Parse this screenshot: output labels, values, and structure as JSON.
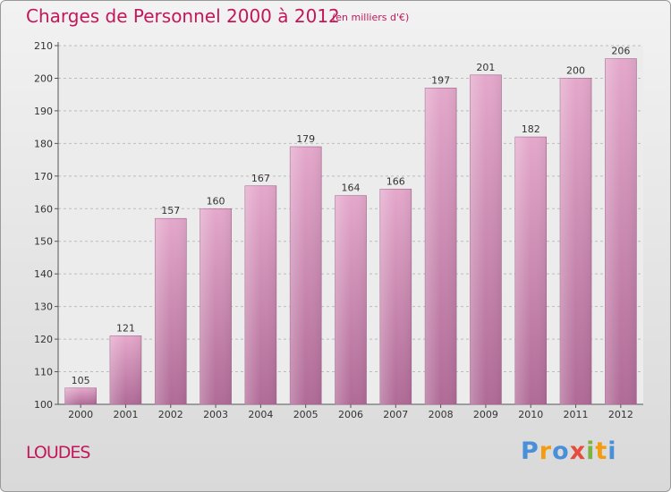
{
  "chart_data": {
    "type": "bar",
    "title": "Charges de Personnel 2000 à 2012",
    "subtitle": "(en milliers d'€)",
    "categories": [
      "2000",
      "2001",
      "2002",
      "2003",
      "2004",
      "2005",
      "2006",
      "2007",
      "2008",
      "2009",
      "2010",
      "2011",
      "2012"
    ],
    "values": [
      105,
      121,
      157,
      160,
      167,
      179,
      164,
      166,
      197,
      201,
      182,
      200,
      206
    ],
    "yticks": [
      100,
      110,
      120,
      130,
      140,
      150,
      160,
      170,
      180,
      190,
      200,
      210
    ],
    "ylim": [
      100,
      210
    ],
    "grid": "horizontal-dashed",
    "bar_color": "#d987b4"
  },
  "location": "LOUDES",
  "logo": {
    "letters": [
      "P",
      "r",
      "o",
      "x",
      "i",
      "t",
      "i"
    ],
    "colors": [
      "#4a90d9",
      "#f39c12",
      "#4a90d9",
      "#e74c3c",
      "#7cb342",
      "#f39c12",
      "#4a90d9"
    ]
  }
}
